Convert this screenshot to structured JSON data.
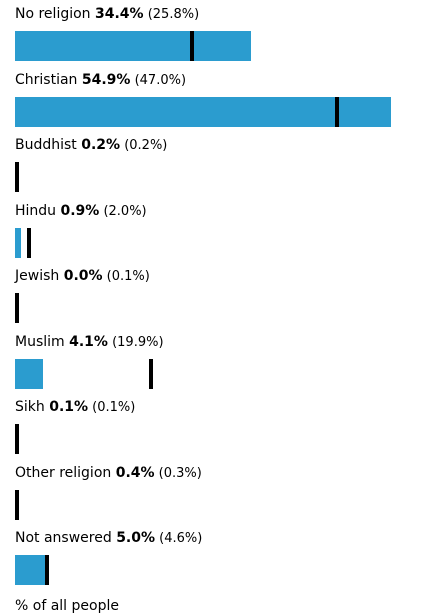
{
  "colors": {
    "bar": "#2b9ccf",
    "marker": "#000000"
  },
  "footer": "% of all people",
  "chart_data": {
    "type": "bar",
    "orientation": "horizontal",
    "xlim": [
      0,
      62
    ],
    "categories": [
      "No religion",
      "Christian",
      "Buddhist",
      "Hindu",
      "Jewish",
      "Muslim",
      "Sikh",
      "Other religion",
      "Not answered"
    ],
    "series": [
      {
        "values": [
          34.4,
          54.9,
          0.2,
          0.9,
          0.0,
          4.1,
          0.1,
          0.4,
          5.0
        ]
      },
      {
        "values": [
          25.8,
          47.0,
          0.2,
          2.0,
          0.1,
          19.9,
          0.1,
          0.3,
          4.6
        ]
      }
    ],
    "value_labels": [
      "34.4%",
      "54.9%",
      "0.2%",
      "0.9%",
      "0.0%",
      "4.1%",
      "0.1%",
      "0.4%",
      "5.0%"
    ],
    "comparison_labels": [
      "(25.8%)",
      "(47.0%)",
      "(0.2%)",
      "(2.0%)",
      "(0.1%)",
      "(19.9%)",
      "(0.1%)",
      "(0.3%)",
      "(4.6%)"
    ],
    "grid": false,
    "legend": "none"
  }
}
